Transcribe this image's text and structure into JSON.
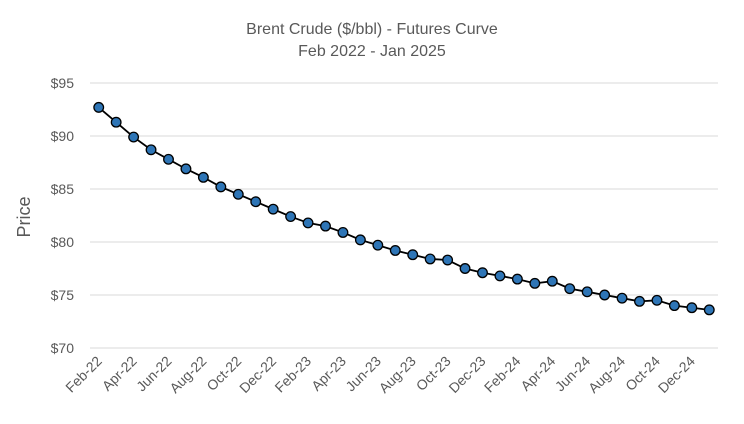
{
  "chart_data": {
    "type": "line",
    "title": "Brent Crude ($/bbl) - Futures Curve",
    "subtitle": "Feb 2022 - Jan 2025",
    "xlabel": "",
    "ylabel": "Price",
    "ylim": [
      70,
      95
    ],
    "y_ticks": [
      "$70",
      "$75",
      "$80",
      "$85",
      "$90",
      "$95"
    ],
    "x_tick_labels": [
      "Feb-22",
      "Apr-22",
      "Jun-22",
      "Aug-22",
      "Oct-22",
      "Dec-22",
      "Feb-23",
      "Apr-23",
      "Jun-23",
      "Aug-23",
      "Oct-23",
      "Dec-23",
      "Feb-24",
      "Apr-24",
      "Jun-24",
      "Aug-24",
      "Oct-24",
      "Dec-24"
    ],
    "grid": true,
    "legend": "none",
    "x": [
      "Feb-22",
      "Mar-22",
      "Apr-22",
      "May-22",
      "Jun-22",
      "Jul-22",
      "Aug-22",
      "Sep-22",
      "Oct-22",
      "Nov-22",
      "Dec-22",
      "Jan-23",
      "Feb-23",
      "Mar-23",
      "Apr-23",
      "May-23",
      "Jun-23",
      "Jul-23",
      "Aug-23",
      "Sep-23",
      "Oct-23",
      "Nov-23",
      "Dec-23",
      "Jan-24",
      "Feb-24",
      "Mar-24",
      "Apr-24",
      "May-24",
      "Jun-24",
      "Jul-24",
      "Aug-24",
      "Sep-24",
      "Oct-24",
      "Nov-24",
      "Dec-24",
      "Jan-25"
    ],
    "series": [
      {
        "values": [
          92.7,
          91.3,
          89.9,
          88.7,
          87.8,
          86.9,
          86.1,
          85.2,
          84.5,
          83.8,
          83.1,
          82.4,
          81.8,
          81.5,
          80.9,
          80.2,
          79.7,
          79.2,
          78.8,
          78.4,
          78.3,
          77.5,
          77.1,
          76.8,
          76.5,
          76.1,
          76.3,
          75.6,
          75.3,
          75.0,
          74.7,
          74.4,
          74.5,
          74.0,
          73.8,
          73.6
        ]
      }
    ],
    "colors": {
      "marker_fill": "#2E75B6",
      "line": "#000000",
      "grid": "#D9D9D9",
      "text": "#595959"
    }
  }
}
